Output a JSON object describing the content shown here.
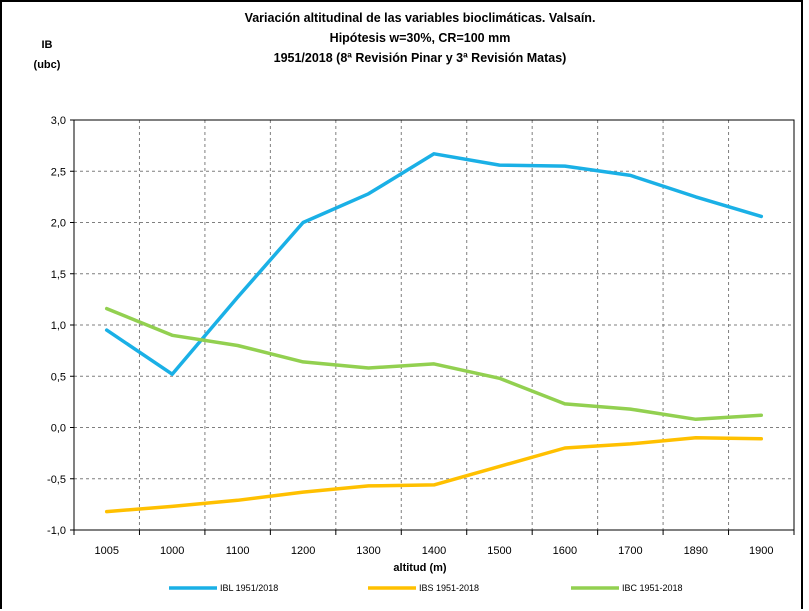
{
  "chart_data": {
    "type": "line",
    "title_lines": [
      "Variación altitudinal de las variables bioclimáticas.  Valsaín.",
      "Hipótesis w=30%, CR=100 mm",
      "1951/2018 (8ª Revisión Pinar y 3ª Revisión Matas)"
    ],
    "ylabel_lines": [
      "IB",
      "(ubc)"
    ],
    "xlabel": "altitud (m)",
    "categories": [
      "1005",
      "1000",
      "1100",
      "1200",
      "1300",
      "1400",
      "1500",
      "1600",
      "1700",
      "1890",
      "1900"
    ],
    "ylim": [
      -1.0,
      3.0
    ],
    "yticks": [
      "-1,0",
      "-0,5",
      "0,0",
      "0,5",
      "1,0",
      "1,5",
      "2,0",
      "2,5",
      "3,0"
    ],
    "grid": true,
    "legend_position": "bottom",
    "series": [
      {
        "name": "IBL 1951/2018",
        "color": "#1ab0e6",
        "values": [
          0.95,
          0.52,
          1.27,
          2.0,
          2.28,
          2.67,
          2.56,
          2.55,
          2.46,
          2.25,
          2.06
        ]
      },
      {
        "name": "IBS 1951-2018",
        "color": "#ffc000",
        "values": [
          -0.82,
          -0.77,
          -0.71,
          -0.63,
          -0.57,
          -0.56,
          -0.38,
          -0.2,
          -0.16,
          -0.1,
          -0.11
        ]
      },
      {
        "name": "IBC 1951-2018",
        "color": "#92d050",
        "values": [
          1.16,
          0.9,
          0.8,
          0.64,
          0.58,
          0.62,
          0.48,
          0.23,
          0.18,
          0.08,
          0.12
        ]
      }
    ]
  }
}
